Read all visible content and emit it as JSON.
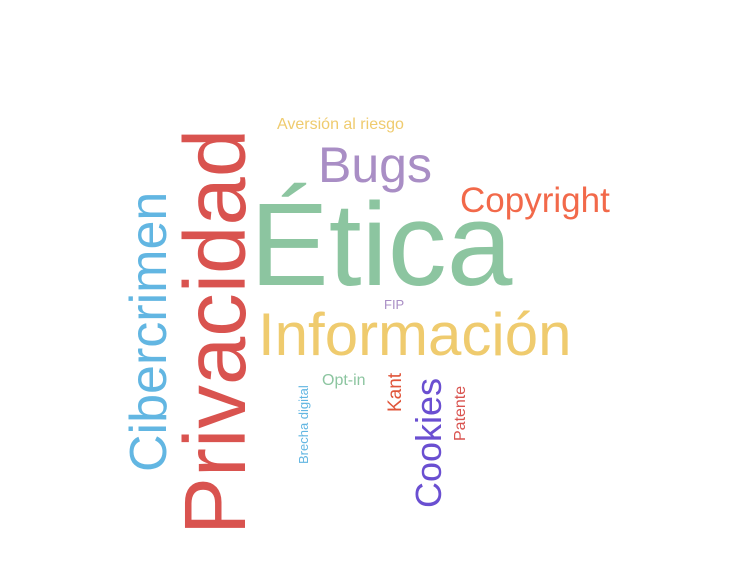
{
  "words": [
    {
      "id": "etica",
      "text": "Ética",
      "color": "#8cc5a0"
    },
    {
      "id": "informacion",
      "text": "Información",
      "color": "#efcb6e"
    },
    {
      "id": "privacidad",
      "text": "Privacidad",
      "color": "#d9534f"
    },
    {
      "id": "cibercrimen",
      "text": "Cibercrimen",
      "color": "#62b6e2"
    },
    {
      "id": "bugs",
      "text": "Bugs",
      "color": "#a98ec5"
    },
    {
      "id": "copyright",
      "text": "Copyright",
      "color": "#f2694a"
    },
    {
      "id": "aversion",
      "text": "Aversión al riesgo",
      "color": "#efcb6e"
    },
    {
      "id": "cookies",
      "text": "Cookies",
      "color": "#6a4fd1"
    },
    {
      "id": "kant",
      "text": "Kant",
      "color": "#e0553a"
    },
    {
      "id": "patente",
      "text": "Patente",
      "color": "#d9534f"
    },
    {
      "id": "optin",
      "text": "Opt-in",
      "color": "#8cc5a0"
    },
    {
      "id": "brecha",
      "text": "Brecha digital",
      "color": "#62b6e2"
    },
    {
      "id": "fip",
      "text": "FIP",
      "color": "#a98ec5"
    }
  ]
}
